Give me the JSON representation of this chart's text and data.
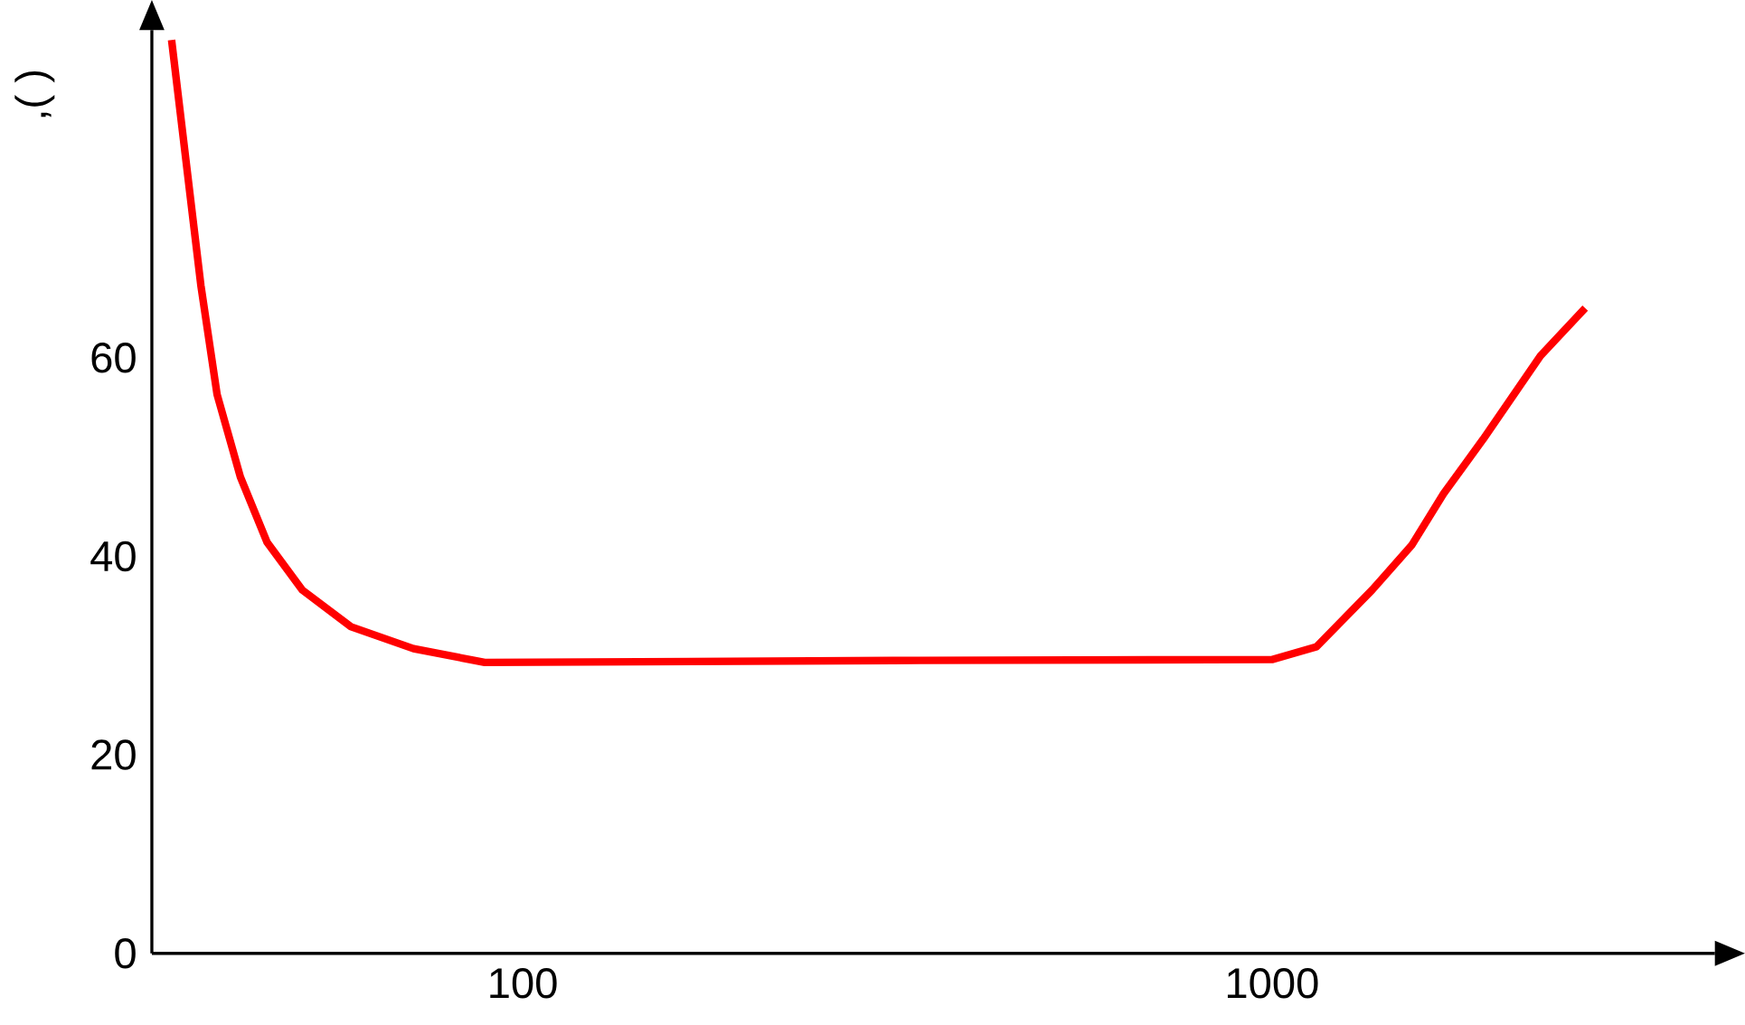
{
  "chart_data": {
    "type": "line",
    "ylabel": ",( )",
    "color": "#ff0000",
    "log": "x",
    "x": [
      34,
      37.2,
      39.1,
      42,
      45.6,
      50.8,
      59,
      71.5,
      89,
      312,
      1000,
      1147,
      1360,
      1536,
      1694,
      1914,
      2282,
      2618
    ],
    "values": [
      92,
      67.3,
      56.3,
      48,
      41.4,
      36.6,
      32.9,
      30.7,
      29.3,
      29.5,
      29.6,
      30.9,
      36.6,
      41.1,
      46.3,
      51.8,
      60.2,
      65
    ],
    "xlim": [
      32,
      3900
    ],
    "ylim": [
      0,
      93
    ],
    "xticks": [
      100,
      1000
    ],
    "yticks": [
      0,
      20,
      40,
      60
    ]
  }
}
